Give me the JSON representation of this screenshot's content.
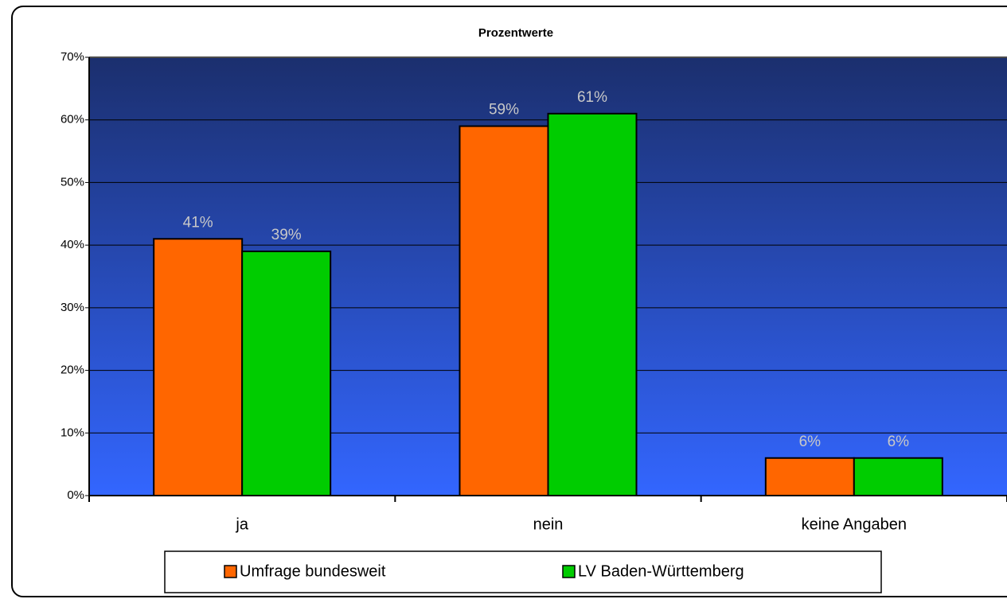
{
  "chart_data": {
    "type": "bar",
    "title": "Prozentwerte",
    "categories": [
      "ja",
      "nein",
      "keine Angaben"
    ],
    "series": [
      {
        "name": "Umfrage bundesweit",
        "color": "#ff6600",
        "values": [
          41,
          59,
          6
        ],
        "value_labels": [
          "41%",
          "59%",
          "6%"
        ]
      },
      {
        "name": "LV Baden-Württemberg",
        "color": "#00cc00",
        "values": [
          39,
          61,
          6
        ],
        "value_labels": [
          "39%",
          "61%",
          "6%"
        ]
      }
    ],
    "ylim": [
      0,
      70
    ],
    "yticks": [
      {
        "value": 0,
        "label": "0%"
      },
      {
        "value": 10,
        "label": "10%"
      },
      {
        "value": 20,
        "label": "20%"
      },
      {
        "value": 30,
        "label": "30%"
      },
      {
        "value": 40,
        "label": "40%"
      },
      {
        "value": 50,
        "label": "50%"
      },
      {
        "value": 60,
        "label": "60%"
      },
      {
        "value": 70,
        "label": "70%"
      }
    ],
    "grid": true,
    "legend": "bottom"
  }
}
